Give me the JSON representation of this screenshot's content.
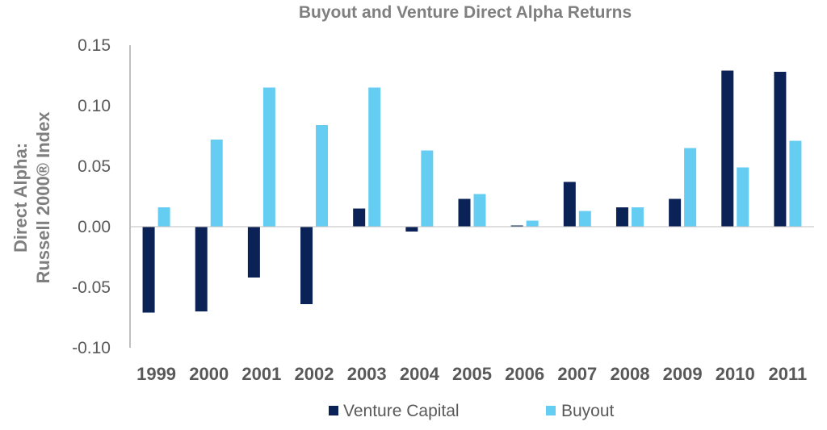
{
  "chart_data": {
    "type": "bar",
    "title": "Buyout and Venture Direct Alpha Returns",
    "xlabel": "",
    "ylabel_lines": [
      "Direct Alpha:",
      "Russell 2000® Index"
    ],
    "ylim": [
      -0.1,
      0.15
    ],
    "yticks": [
      "0.15",
      "0.10",
      "0.05",
      "0.00",
      "-0.05",
      "-0.10"
    ],
    "ytick_values": [
      0.15,
      0.1,
      0.05,
      0.0,
      -0.05,
      -0.1
    ],
    "categories": [
      "1999",
      "2000",
      "2001",
      "2002",
      "2003",
      "2004",
      "2005",
      "2006",
      "2007",
      "2008",
      "2009",
      "2010",
      "2011"
    ],
    "series": [
      {
        "name": "Venture Capital",
        "color": "#0b2257",
        "values": [
          -0.071,
          -0.07,
          -0.042,
          -0.064,
          0.015,
          -0.004,
          0.023,
          0.001,
          0.037,
          0.016,
          0.023,
          0.129,
          0.128
        ]
      },
      {
        "name": "Buyout",
        "color": "#66cdf2",
        "values": [
          0.016,
          0.072,
          0.115,
          0.084,
          0.115,
          0.063,
          0.027,
          0.005,
          0.013,
          0.016,
          0.065,
          0.049,
          0.071
        ]
      }
    ],
    "grid": false,
    "legend_position": "bottom"
  }
}
